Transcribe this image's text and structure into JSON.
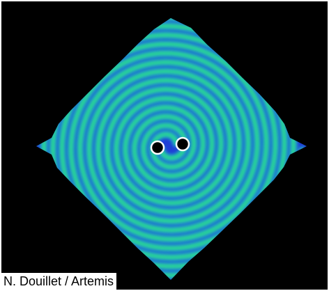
{
  "image": {
    "subject": "spiral-waves-around-two-black-holes",
    "caption": "N. Douillet / Artemis",
    "colors": {
      "background": "#000000",
      "wave_crest": "#2bd98a",
      "wave_trough": "#1f3fd6",
      "mid_tone": "#1fa3c8",
      "black_hole": "#000000",
      "black_hole_rim": "#ffffff",
      "caption_bg": "#ffffff",
      "caption_text": "#000000"
    },
    "spiral_turns": 7,
    "black_hole_count": 2
  }
}
